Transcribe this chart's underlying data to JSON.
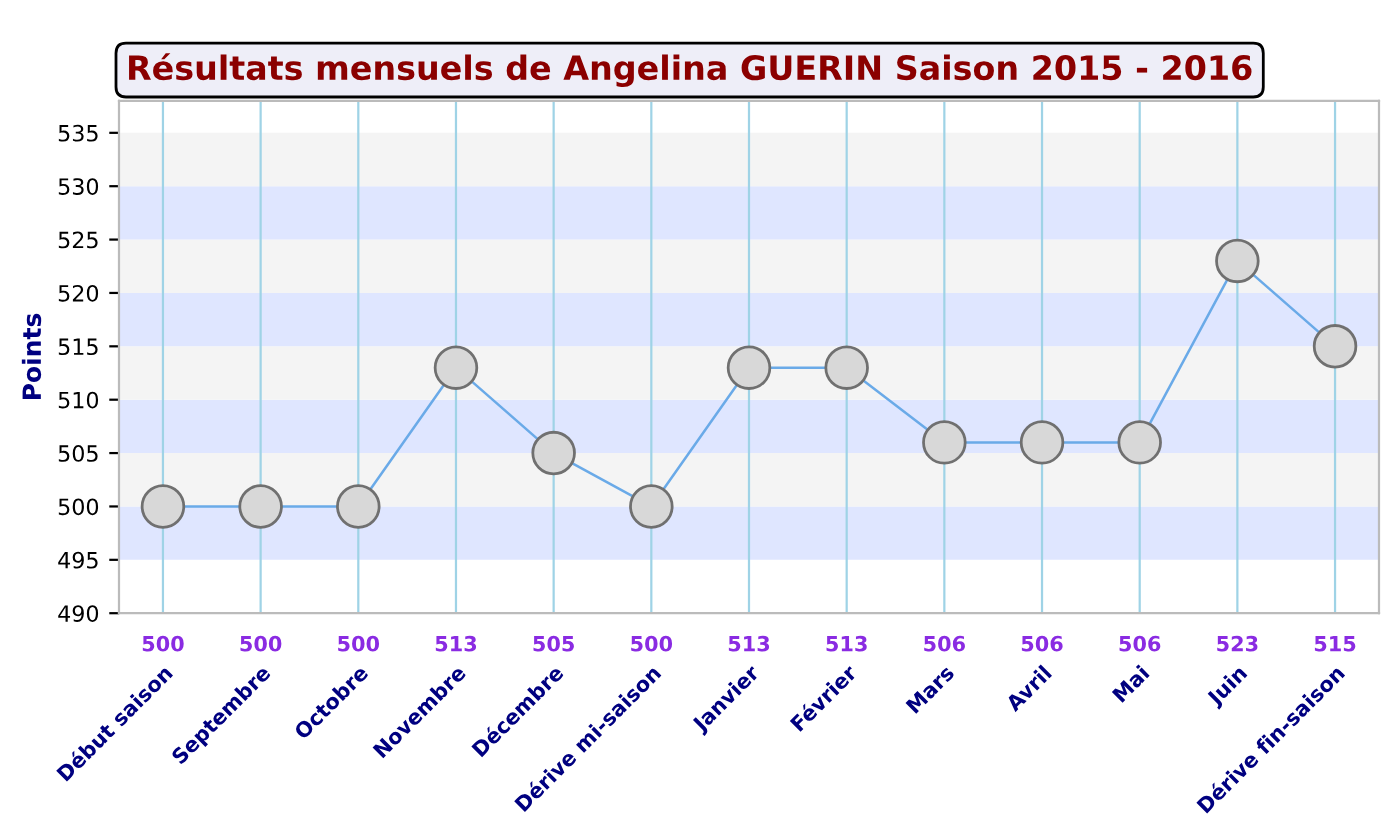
{
  "chart_data": {
    "type": "line",
    "title": "Résultats mensuels de Angelina GUERIN Saison 2015 - 2016",
    "ylabel": "Points",
    "categories": [
      "Début saison",
      "Septembre",
      "Octobre",
      "Novembre",
      "Décembre",
      "Dérive mi-saison",
      "Janvier",
      "Février",
      "Mars",
      "Avril",
      "Mai",
      "Juin",
      "Dérive fin-saison"
    ],
    "series": [
      {
        "color": "#6aaae8",
        "values": [
          500,
          500,
          500,
          513,
          505,
          500,
          513,
          513,
          506,
          506,
          506,
          523,
          515
        ]
      }
    ],
    "ylim": [
      490,
      538
    ],
    "yticks": [
      490,
      495,
      500,
      505,
      510,
      515,
      520,
      525,
      530,
      535
    ],
    "bands": [
      {
        "axis": "y",
        "from": 495,
        "to": 500,
        "color": "#dfe6ff"
      },
      {
        "axis": "y",
        "from": 500,
        "to": 505,
        "color": "#f4f4f4"
      },
      {
        "axis": "y",
        "from": 505,
        "to": 510,
        "color": "#dfe6ff"
      },
      {
        "axis": "y",
        "from": 510,
        "to": 515,
        "color": "#f4f4f4"
      },
      {
        "axis": "y",
        "from": 515,
        "to": 520,
        "color": "#dfe6ff"
      },
      {
        "axis": "y",
        "from": 520,
        "to": 525,
        "color": "#f4f4f4"
      },
      {
        "axis": "y",
        "from": 525,
        "to": 530,
        "color": "#dfe6ff"
      },
      {
        "axis": "y",
        "from": 530,
        "to": 535,
        "color": "#f4f4f4"
      }
    ],
    "grid": "x",
    "marker": "circle",
    "line_style": "solid",
    "data_labels": true
  }
}
